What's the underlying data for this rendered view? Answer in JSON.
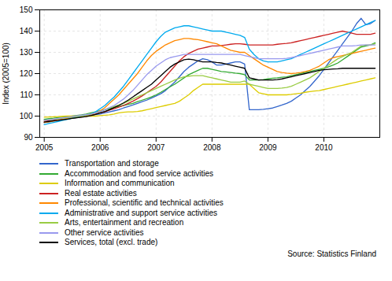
{
  "chart_data": {
    "type": "line",
    "ylabel": "Index (2005=100)",
    "caption": "Source: Statistics Finland",
    "xlim": [
      2004.92,
      2011.0
    ],
    "xticks": [
      2005,
      2006,
      2007,
      2008,
      2009,
      2010
    ],
    "ylim": [
      90,
      150
    ],
    "yticks": [
      90,
      100,
      110,
      120,
      130,
      140,
      150
    ],
    "grid": true,
    "legend": "bottom",
    "x": [
      2005,
      2005.083338,
      2005.166676,
      2005.250014,
      2005.333352,
      2005.41669,
      2005.500028,
      2005.583366,
      2005.666704,
      2005.750042,
      2005.83338,
      2005.916718,
      2006.000056,
      2006.083394,
      2006.166732,
      2006.25007,
      2006.333408,
      2006.416746,
      2006.500085,
      2006.583423,
      2006.666761,
      2006.750099,
      2006.833437,
      2006.916775,
      2007.000113,
      2007.083451,
      2007.166789,
      2007.250127,
      2007.333465,
      2007.416803,
      2007.500141,
      2007.583479,
      2007.666817,
      2007.750155,
      2007.833493,
      2007.916831,
      2008.000169,
      2008.083507,
      2008.166845,
      2008.250183,
      2008.333521,
      2008.416859,
      2008.500197,
      2008.583535,
      2008.666873,
      2008.750211,
      2008.833549,
      2008.916887,
      2009.000225,
      2009.083563,
      2009.166901,
      2009.250239,
      2009.333577,
      2009.416915,
      2009.500254,
      2009.583592,
      2009.66693,
      2009.750268,
      2009.833606,
      2009.916944,
      2010.000282,
      2010.08362,
      2010.166958,
      2010.250296,
      2010.333634,
      2010.416972,
      2010.50031,
      2010.583648,
      2010.666986,
      2010.750324,
      2010.833662,
      2010.917
    ],
    "series": [
      {
        "name": "Transportation and storage",
        "color": "#3366CC",
        "values": [
          97.0,
          97.3,
          97.6,
          98.0,
          98.3,
          98.7,
          99.0,
          99.3,
          99.7,
          100.0,
          100.3,
          100.7,
          101.0,
          101.5,
          102.0,
          102.5,
          103.0,
          103.8,
          104.5,
          105.2,
          106.0,
          106.8,
          107.5,
          108.5,
          109.5,
          110.5,
          112.0,
          114.0,
          116.0,
          118.5,
          121.0,
          123.0,
          124.5,
          126.0,
          127.0,
          126.5,
          125.5,
          124.0,
          124.0,
          124.5,
          125.0,
          125.5,
          125.5,
          124.5,
          103.0,
          103.0,
          103.0,
          103.2,
          103.5,
          103.8,
          104.5,
          105.2,
          106.0,
          107.0,
          108.5,
          110.0,
          112.0,
          114.0,
          116.5,
          119.0,
          122.0,
          125.0,
          128.0,
          131.0,
          134.0,
          137.0,
          140.0,
          143.5,
          146.0,
          143.0,
          143.5,
          145.0
        ]
      },
      {
        "name": "Accommodation and food service activities",
        "color": "#33AA33",
        "values": [
          98.5,
          98.8,
          99.0,
          99.3,
          99.5,
          99.7,
          100.0,
          100.3,
          100.6,
          101.0,
          101.5,
          102.0,
          102.5,
          103.0,
          103.5,
          104.0,
          104.5,
          105.0,
          105.5,
          106.0,
          106.8,
          107.5,
          108.2,
          109.0,
          110.0,
          111.2,
          112.5,
          113.8,
          115.0,
          116.5,
          118.0,
          119.5,
          120.5,
          121.5,
          122.5,
          122.5,
          122.0,
          121.5,
          121.0,
          120.8,
          120.5,
          120.2,
          120.0,
          119.5,
          117.0,
          117.0,
          117.0,
          117.2,
          117.5,
          117.8,
          118.0,
          118.3,
          118.5,
          119.0,
          119.5,
          120.0,
          120.5,
          121.0,
          121.5,
          122.0,
          122.5,
          123.2,
          124.0,
          125.0,
          126.5,
          128.0,
          129.5,
          131.0,
          132.5,
          133.0,
          133.5,
          134.5
        ]
      },
      {
        "name": "Information and communication",
        "color": "#DDCC00",
        "values": [
          99.5,
          99.6,
          99.7,
          99.8,
          99.9,
          100.0,
          100.0,
          100.0,
          100.0,
          100.0,
          100.0,
          100.0,
          100.2,
          100.4,
          100.6,
          101.0,
          101.5,
          101.8,
          102.0,
          102.0,
          102.2,
          102.5,
          103.0,
          103.5,
          104.0,
          104.5,
          105.0,
          105.5,
          106.0,
          107.0,
          108.5,
          110.0,
          112.0,
          113.5,
          115.0,
          115.0,
          115.0,
          115.0,
          115.0,
          115.0,
          115.0,
          115.0,
          115.0,
          115.0,
          115.0,
          113.0,
          111.0,
          110.5,
          110.0,
          110.0,
          110.0,
          110.0,
          110.0,
          110.2,
          110.5,
          110.8,
          111.2,
          111.5,
          111.8,
          112.0,
          112.5,
          113.0,
          113.5,
          114.0,
          114.5,
          115.0,
          115.5,
          116.0,
          116.5,
          117.0,
          117.5,
          118.0
        ]
      },
      {
        "name": "Real estate activities",
        "color": "#CC2222",
        "values": [
          97.5,
          97.8,
          98.0,
          98.3,
          98.5,
          98.8,
          99.0,
          99.3,
          99.6,
          100.0,
          100.5,
          101.0,
          101.5,
          102.0,
          102.8,
          103.5,
          104.2,
          105.0,
          106.0,
          107.0,
          108.2,
          109.5,
          111.0,
          112.5,
          114.0,
          116.0,
          118.5,
          121.0,
          123.5,
          126.0,
          128.0,
          129.5,
          130.5,
          131.5,
          132.0,
          132.5,
          133.0,
          133.0,
          133.2,
          133.5,
          133.8,
          134.0,
          134.0,
          133.8,
          133.5,
          133.5,
          133.5,
          133.5,
          133.5,
          133.5,
          133.8,
          134.0,
          134.2,
          134.5,
          135.0,
          135.5,
          136.0,
          136.5,
          137.0,
          137.5,
          138.0,
          138.5,
          139.0,
          139.5,
          140.0,
          139.5,
          139.0,
          138.5,
          138.5,
          138.5,
          138.5,
          139.0
        ]
      },
      {
        "name": "Professional, scientific and technical activities",
        "color": "#FF8800",
        "values": [
          97.0,
          97.3,
          97.6,
          98.0,
          98.4,
          98.8,
          99.2,
          99.5,
          99.8,
          100.2,
          100.8,
          101.5,
          102.5,
          104.0,
          106.0,
          108.0,
          110.0,
          112.5,
          115.0,
          117.5,
          120.0,
          123.0,
          126.0,
          128.5,
          130.5,
          132.0,
          133.5,
          134.5,
          135.5,
          136.0,
          136.5,
          136.5,
          136.2,
          136.0,
          135.5,
          135.0,
          134.5,
          134.0,
          133.0,
          132.0,
          131.0,
          130.5,
          130.0,
          130.0,
          128.5,
          127.0,
          125.5,
          124.0,
          123.0,
          122.0,
          121.0,
          120.5,
          120.2,
          120.0,
          120.2,
          120.5,
          121.0,
          121.5,
          122.5,
          123.5,
          125.0,
          126.5,
          127.5,
          128.0,
          128.5,
          129.0,
          129.5,
          130.0,
          130.5,
          131.0,
          131.5,
          132.0
        ]
      },
      {
        "name": "Administrative and support service activities",
        "color": "#00AAEE",
        "values": [
          96.0,
          96.5,
          97.0,
          97.5,
          98.0,
          98.5,
          99.0,
          99.5,
          100.0,
          100.5,
          101.0,
          102.0,
          103.5,
          105.0,
          107.0,
          109.0,
          111.5,
          114.0,
          117.0,
          120.0,
          123.0,
          126.0,
          129.0,
          132.0,
          135.0,
          137.5,
          139.5,
          140.5,
          141.5,
          142.0,
          142.5,
          142.5,
          142.0,
          141.5,
          141.0,
          140.5,
          140.0,
          140.0,
          140.0,
          139.5,
          139.0,
          138.5,
          138.0,
          137.0,
          131.5,
          129.0,
          127.0,
          126.0,
          125.5,
          125.5,
          125.5,
          126.0,
          126.5,
          127.0,
          128.0,
          129.0,
          130.0,
          131.0,
          132.0,
          133.0,
          134.0,
          135.0,
          136.0,
          137.0,
          138.0,
          139.0,
          140.0,
          141.0,
          142.0,
          143.0,
          144.0,
          145.0
        ]
      },
      {
        "name": "Arts, entertainment and recreation",
        "color": "#99CC44",
        "values": [
          98.0,
          98.2,
          98.5,
          98.7,
          99.0,
          99.2,
          99.5,
          99.8,
          100.0,
          100.3,
          100.8,
          101.5,
          102.2,
          103.0,
          103.8,
          104.5,
          105.2,
          106.0,
          107.0,
          108.0,
          109.0,
          110.0,
          111.0,
          112.0,
          113.0,
          114.0,
          115.0,
          116.0,
          117.0,
          117.8,
          118.5,
          118.8,
          119.0,
          119.0,
          119.0,
          118.5,
          118.0,
          117.5,
          117.0,
          116.5,
          116.0,
          116.0,
          116.0,
          116.5,
          115.0,
          114.5,
          114.0,
          113.5,
          113.0,
          113.0,
          113.0,
          113.2,
          113.5,
          114.0,
          115.0,
          116.0,
          117.0,
          118.0,
          119.5,
          121.0,
          122.5,
          124.0,
          125.5,
          127.0,
          128.0,
          129.0,
          130.0,
          131.5,
          133.0,
          133.5,
          133.5,
          134.0
        ]
      },
      {
        "name": "Other service activities",
        "color": "#9999EE",
        "values": [
          98.0,
          98.3,
          98.6,
          98.9,
          99.2,
          99.5,
          99.8,
          100.1,
          100.4,
          100.7,
          101.0,
          101.5,
          102.2,
          103.0,
          104.0,
          105.0,
          106.5,
          108.0,
          110.0,
          112.0,
          114.5,
          117.0,
          119.5,
          121.5,
          123.5,
          125.0,
          126.5,
          127.5,
          128.0,
          128.5,
          129.0,
          129.0,
          129.0,
          129.0,
          129.0,
          129.0,
          129.0,
          129.0,
          129.0,
          129.0,
          129.0,
          129.0,
          129.0,
          128.5,
          128.0,
          127.5,
          127.0,
          127.0,
          127.0,
          127.0,
          127.0,
          127.0,
          127.2,
          127.5,
          128.0,
          128.5,
          129.0,
          129.5,
          130.0,
          130.5,
          131.0,
          131.5,
          132.0,
          132.5,
          133.0,
          133.0,
          133.0,
          133.2,
          133.5,
          133.5,
          133.5,
          133.5
        ]
      },
      {
        "name": "Services, total (excl. trade)",
        "color": "#000000",
        "values": [
          97.2,
          97.5,
          97.8,
          98.0,
          98.3,
          98.6,
          98.9,
          99.2,
          99.5,
          99.8,
          100.2,
          100.8,
          101.5,
          102.2,
          103.0,
          104.0,
          105.0,
          106.2,
          107.5,
          109.0,
          110.5,
          112.0,
          113.5,
          115.0,
          117.0,
          119.0,
          121.0,
          123.0,
          124.5,
          125.5,
          126.5,
          126.8,
          126.5,
          126.0,
          125.5,
          125.5,
          125.5,
          125.2,
          125.0,
          124.5,
          124.0,
          123.5,
          123.0,
          122.5,
          118.0,
          117.5,
          117.0,
          117.0,
          117.0,
          117.0,
          117.2,
          117.5,
          118.0,
          118.5,
          119.0,
          119.5,
          120.0,
          120.5,
          121.0,
          121.5,
          121.8,
          122.0,
          122.2,
          122.3,
          122.5,
          122.5,
          122.5,
          122.5,
          122.5,
          122.5,
          122.5,
          122.5
        ]
      }
    ]
  }
}
